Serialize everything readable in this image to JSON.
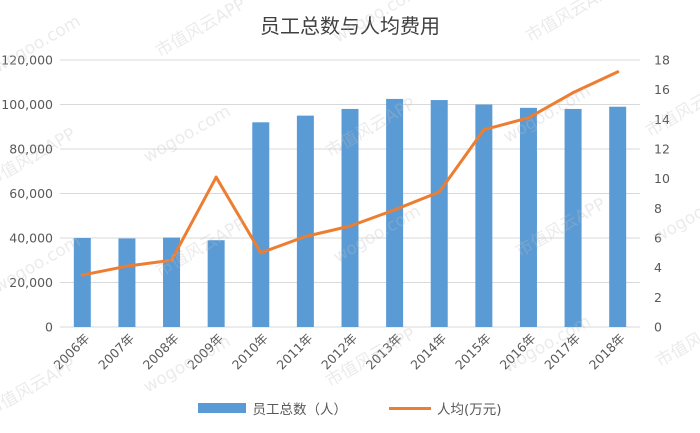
{
  "chart_data": {
    "type": "bar",
    "title": "员工总数与人均费用",
    "categories": [
      "2006年",
      "2007年",
      "2008年",
      "2009年",
      "2010年",
      "2011年",
      "2012年",
      "2013年",
      "2014年",
      "2015年",
      "2016年",
      "2017年",
      "2018年"
    ],
    "series": [
      {
        "name": "员工总数（人）",
        "type": "bar",
        "axis": "left",
        "color": "#5b9bd5",
        "values": [
          40000,
          39800,
          40200,
          39000,
          92000,
          95000,
          98000,
          102500,
          102000,
          100000,
          98500,
          98000,
          99000
        ]
      },
      {
        "name": "人均(万元)",
        "type": "line",
        "axis": "right",
        "color": "#ed7d31",
        "values": [
          3.5,
          4.1,
          4.5,
          10.1,
          5.0,
          6.1,
          6.8,
          7.9,
          9.1,
          13.3,
          14.1,
          15.8,
          17.2
        ]
      }
    ],
    "y_left": {
      "min": 0,
      "max": 120000,
      "ticks": [
        0,
        20000,
        40000,
        60000,
        80000,
        100000,
        120000
      ],
      "tick_labels": [
        "0",
        "20,000",
        "40,000",
        "60,000",
        "80,000",
        "100,000",
        "120,000"
      ]
    },
    "y_right": {
      "min": 0,
      "max": 18,
      "ticks": [
        0,
        2,
        4,
        6,
        8,
        10,
        12,
        14,
        16,
        18
      ],
      "tick_labels": [
        "0",
        "2",
        "4",
        "6",
        "8",
        "10",
        "12",
        "14",
        "16",
        "18"
      ]
    },
    "grid": true,
    "legend_position": "bottom",
    "xlabel": "",
    "ylabel": ""
  },
  "watermark": {
    "text": "wogoo.com",
    "cn_text": "市值风云APP"
  }
}
